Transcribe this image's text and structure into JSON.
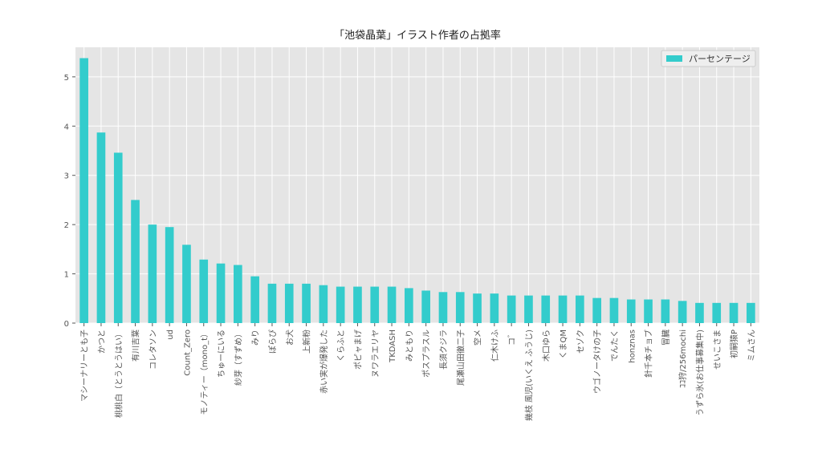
{
  "chart_data": {
    "type": "bar",
    "title": "「池袋晶葉」イラスト作者の占拠率",
    "xlabel": "",
    "ylabel": "",
    "ylim": [
      0,
      5.6
    ],
    "yticks": [
      0,
      1,
      2,
      3,
      4,
      5
    ],
    "grid": true,
    "legend_position": "top-right",
    "colors": {
      "bar": "#33cccc",
      "plot_bg": "#e5e5e5",
      "grid": "#ffffff",
      "text": "#555555"
    },
    "categories": [
      "マシーナリーとも子",
      "かつと",
      "桃桃白（とうとうはい）",
      "有川吉葉",
      "コレタソン",
      "ud",
      "Count_Zero",
      "モノティー（mono_t）",
      "ちゅーにいる",
      "紗芽（すずめ）",
      "みり",
      "ぽらぴ",
      "お犬",
      "上新粉",
      "赤い実が爆発した",
      "くらふと",
      "ポピャまげ",
      "ヌワラエリヤ",
      "TKDASH",
      "みともり",
      "ポスプラスル",
      "長須クジラ",
      "尾瀬山田徹二子",
      "空メ",
      "仁木けふ",
      "コ゛",
      "幾枝 風児(いくえ ふうじ)",
      "木口ゆら",
      "くまQM",
      "セゾク",
      "ウゴノータけの子",
      "でんたく",
      "honznas",
      "針千本チョブ",
      "冒臓",
      "ｺｺ狩/256mochi",
      "うずら氷(お仕事募集中)",
      "せいこさま",
      "初嗣猿P",
      "ミムさん"
    ],
    "series": [
      {
        "name": "パーセンテージ",
        "values": [
          5.38,
          3.87,
          3.46,
          2.5,
          2.0,
          1.95,
          1.59,
          1.29,
          1.21,
          1.18,
          0.95,
          0.8,
          0.8,
          0.8,
          0.77,
          0.74,
          0.74,
          0.74,
          0.74,
          0.71,
          0.66,
          0.63,
          0.63,
          0.6,
          0.6,
          0.56,
          0.56,
          0.56,
          0.56,
          0.56,
          0.51,
          0.51,
          0.48,
          0.48,
          0.48,
          0.45,
          0.41,
          0.41,
          0.41,
          0.41
        ]
      }
    ]
  }
}
